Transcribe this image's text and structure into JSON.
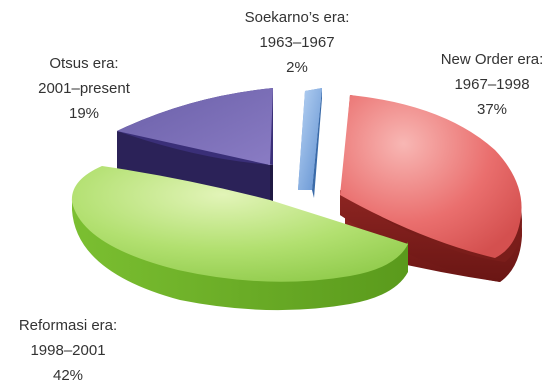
{
  "chart_data": {
    "type": "pie",
    "style": "3d-exploded",
    "categories": [
      "Soekarno's era",
      "New Order era",
      "Reformasi era",
      "Otsus era"
    ],
    "values": [
      2,
      37,
      42,
      19
    ],
    "slices": [
      {
        "name": "Soekarno's era",
        "period": "1963–1967",
        "value": 2,
        "label": "2%",
        "color": "#8fb8e8"
      },
      {
        "name": "New Order era",
        "period": "1967–1998",
        "value": 37,
        "label": "37%",
        "color": "#e8706f"
      },
      {
        "name": "Reformasi era",
        "period": "1998–2001",
        "value": 42,
        "label": "42%",
        "color": "#a8d86a"
      },
      {
        "name": "Otsus era",
        "period": "2001–present",
        "value": 19,
        "label": "19%",
        "color": "#7a6ab8"
      }
    ],
    "labels": [
      {
        "lines": [
          "Soekarno’s era:",
          "1963–1967",
          "2%"
        ]
      },
      {
        "lines": [
          "New Order era:",
          "1967–1998",
          "37%"
        ]
      },
      {
        "lines": [
          "Reformasi era:",
          "1998–2001",
          "42%"
        ]
      },
      {
        "lines": [
          "Otsus era:",
          "2001–present",
          "19%"
        ]
      }
    ],
    "legend": "none"
  }
}
